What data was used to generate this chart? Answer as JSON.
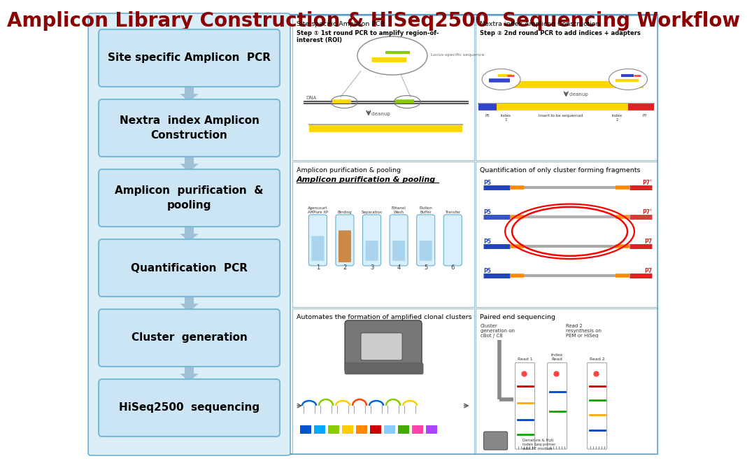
{
  "title": "Amplicon Library Construction & HiSeq2500  Sequencing Workflow",
  "title_color": "#8B0000",
  "title_fontsize": 20,
  "bg_color": "#FFFFFF",
  "outer_border_color": "#5a9fc8",
  "left_panel_bg": "#dbeef7",
  "box_bg": "#cce5f5",
  "box_border": "#7ab8d8",
  "arrow_color": "#a0c0d8",
  "steps": [
    "Site specific Amplicon  PCR",
    "Nextra  index Amplicon\nConstruction",
    "Amplicon  purification  &\npooling",
    "Quantification  PCR",
    "Cluster  generation",
    "HiSeq2500  sequencing"
  ],
  "panel_titles": [
    "Site specific Amplicon PCR",
    "Nextra index Amplicon Construction",
    "Amplicon purification & pooling",
    "Quantification of only cluster forming fragments",
    "Automates the formation of amplified clonal clusters",
    "Paired end sequencing"
  ]
}
